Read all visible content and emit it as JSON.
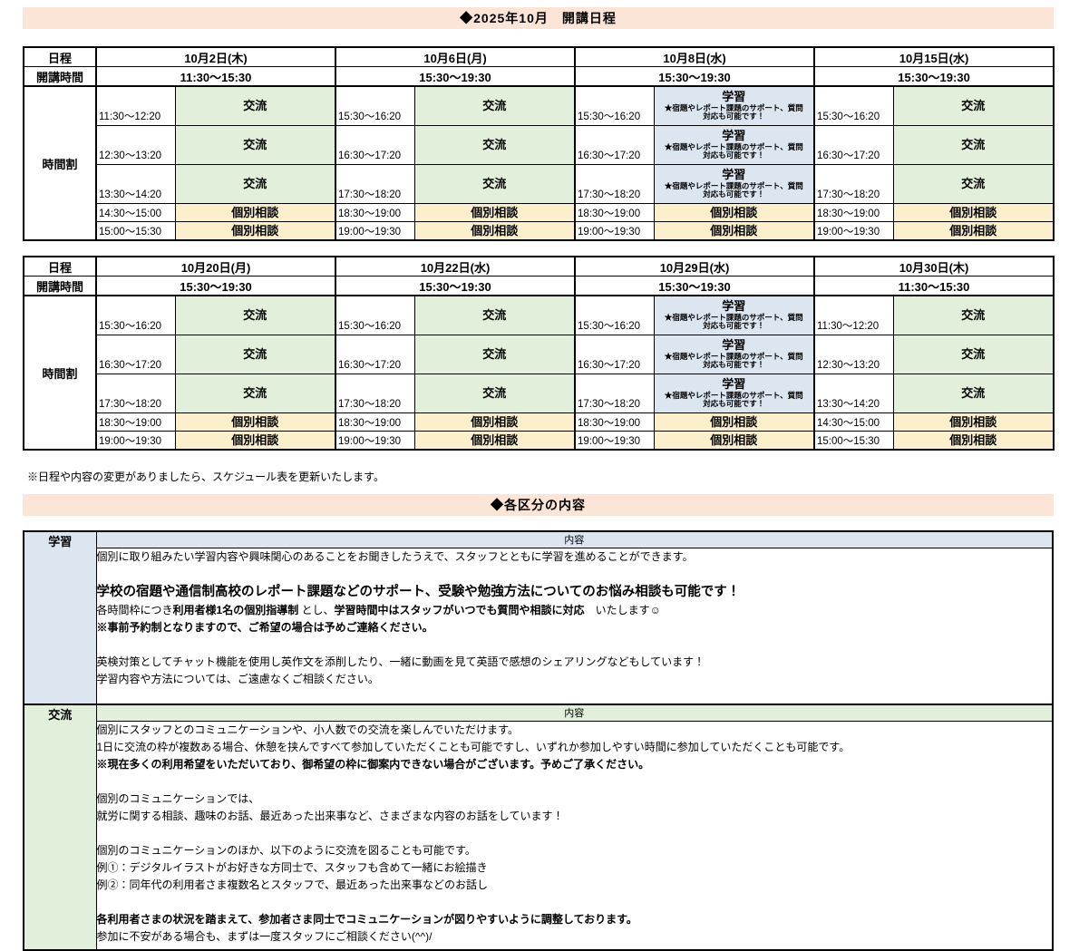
{
  "banners": {
    "schedule": "◆2025年10月　開講日程",
    "categories": "◆各区分の内容"
  },
  "note": "※日程や内容の変更がありましたら、スケジュール表を更新いたします。",
  "labels": {
    "date": "日程",
    "hours": "開講時間",
    "timetable": "時間割",
    "content_header": "内容"
  },
  "colors": {
    "banner_bg": "#FCE4D6",
    "exchange_bg": "#E2EFDA",
    "study_bg": "#DCE6F1",
    "consult_bg": "#FCF0CC",
    "border": "#000000"
  },
  "activity_types": {
    "exchange": {
      "label": "交流",
      "bg": "#E2EFDA",
      "sub_lines": []
    },
    "study": {
      "label": "学習",
      "bg": "#DCE6F1",
      "sub_lines": [
        "★宿題やレポート課題のサポート、質問",
        "対応も可能です！"
      ]
    },
    "consult": {
      "label": "個別相談",
      "bg": "#FCF0CC",
      "sub_lines": []
    }
  },
  "schedule_tables": [
    {
      "days": [
        {
          "date": "10月2日(木)",
          "hours": "11:30～15:30",
          "slots": [
            {
              "time": "11:30～12:20",
              "type": "exchange"
            },
            {
              "time": "12:30～13:20",
              "type": "exchange"
            },
            {
              "time": "13:30～14:20",
              "type": "exchange"
            },
            {
              "time": "14:30～15:00",
              "type": "consult"
            },
            {
              "time": "15:00～15:30",
              "type": "consult"
            }
          ]
        },
        {
          "date": "10月6日(月)",
          "hours": "15:30～19:30",
          "slots": [
            {
              "time": "15:30～16:20",
              "type": "exchange"
            },
            {
              "time": "16:30～17:20",
              "type": "exchange"
            },
            {
              "time": "17:30～18:20",
              "type": "exchange"
            },
            {
              "time": "18:30～19:00",
              "type": "consult"
            },
            {
              "time": "19:00～19:30",
              "type": "consult"
            }
          ]
        },
        {
          "date": "10月8日(水)",
          "hours": "15:30～19:30",
          "slots": [
            {
              "time": "15:30～16:20",
              "type": "study"
            },
            {
              "time": "16:30～17:20",
              "type": "study"
            },
            {
              "time": "17:30～18:20",
              "type": "study"
            },
            {
              "time": "18:30～19:00",
              "type": "consult"
            },
            {
              "time": "19:00～19:30",
              "type": "consult"
            }
          ]
        },
        {
          "date": "10月15日(水)",
          "hours": "15:30～19:30",
          "slots": [
            {
              "time": "15:30～16:20",
              "type": "exchange"
            },
            {
              "time": "16:30～17:20",
              "type": "exchange"
            },
            {
              "time": "17:30～18:20",
              "type": "exchange"
            },
            {
              "time": "18:30～19:00",
              "type": "consult"
            },
            {
              "time": "19:00～19:30",
              "type": "consult"
            }
          ]
        }
      ]
    },
    {
      "days": [
        {
          "date": "10月20日(月)",
          "hours": "15:30～19:30",
          "slots": [
            {
              "time": "15:30～16:20",
              "type": "exchange"
            },
            {
              "time": "16:30～17:20",
              "type": "exchange"
            },
            {
              "time": "17:30～18:20",
              "type": "exchange"
            },
            {
              "time": "18:30～19:00",
              "type": "consult"
            },
            {
              "time": "19:00～19:30",
              "type": "consult"
            }
          ]
        },
        {
          "date": "10月22日(水)",
          "hours": "15:30～19:30",
          "slots": [
            {
              "time": "15:30～16:20",
              "type": "exchange"
            },
            {
              "time": "16:30～17:20",
              "type": "exchange"
            },
            {
              "time": "17:30～18:20",
              "type": "exchange"
            },
            {
              "time": "18:30～19:00",
              "type": "consult"
            },
            {
              "time": "19:00～19:30",
              "type": "consult"
            }
          ]
        },
        {
          "date": "10月29日(水)",
          "hours": "15:30～19:30",
          "slots": [
            {
              "time": "15:30～16:20",
              "type": "study"
            },
            {
              "time": "16:30～17:20",
              "type": "study"
            },
            {
              "time": "17:30～18:20",
              "type": "study"
            },
            {
              "time": "18:30～19:00",
              "type": "consult"
            },
            {
              "time": "19:00～19:30",
              "type": "consult"
            }
          ]
        },
        {
          "date": "10月30日(木)",
          "hours": "11:30～15:30",
          "slots": [
            {
              "time": "11:30～12:20",
              "type": "exchange"
            },
            {
              "time": "12:30～13:20",
              "type": "exchange"
            },
            {
              "time": "13:30～14:20",
              "type": "exchange"
            },
            {
              "time": "14:30～15:00",
              "type": "consult"
            },
            {
              "time": "15:00～15:30",
              "type": "consult"
            }
          ]
        }
      ]
    }
  ],
  "sections": [
    {
      "key": "study",
      "label": "学習",
      "bg": "#DCE6F1",
      "body_height": 171,
      "lines": [
        {
          "segs": [
            {
              "text": "個別に取り組みたい学習内容や興味関心のあることをお聞きしたうえで、スタッフとともに学習を進めることができます。",
              "bold": false
            }
          ]
        },
        {
          "segs": []
        },
        {
          "size": "large",
          "segs": [
            {
              "text": "学校の宿題や通信制高校のレポート課題などのサポート、受験や勉強方法についてのお悩み相談も可能です！",
              "bold": true
            }
          ]
        },
        {
          "segs": [
            {
              "text": "各時間枠につき",
              "bold": false
            },
            {
              "text": "利用者様1名の個別指導制",
              "bold": true
            },
            {
              "text": " とし、",
              "bold": false
            },
            {
              "text": "学習時間中はスタッフがいつでも質問や相談に対応",
              "bold": true
            },
            {
              "text": "　いたします☺",
              "bold": false
            }
          ]
        },
        {
          "segs": [
            {
              "text": "※事前予約制となりますので、ご希望の場合は予めご連絡ください。",
              "bold": true
            }
          ]
        },
        {
          "segs": []
        },
        {
          "segs": [
            {
              "text": "英検対策としてチャット機能を使用し英作文を添削したり、一緒に動画を見て英語で感想のシェアリングなどもしています！",
              "bold": false
            }
          ]
        },
        {
          "segs": [
            {
              "text": "学習内容や方法については、ご遠慮なくご相談ください。",
              "bold": false
            }
          ]
        }
      ]
    },
    {
      "key": "exchange",
      "label": "交流",
      "bg": "#E2EFDA",
      "body_height": 251,
      "lines": [
        {
          "segs": [
            {
              "text": "個別にスタッフとのコミュニケーションや、小人数での交流を楽しんでいただけます。",
              "bold": false
            }
          ]
        },
        {
          "segs": [
            {
              "text": "1日に交流の枠が複数ある場合、休憩を挟んですべて参加していただくことも可能ですし、いずれか参加しやすい時間に参加していただくことも可能です。",
              "bold": false
            }
          ]
        },
        {
          "segs": [
            {
              "text": "※現在多くの利用希望をいただいており、御希望の枠に御案内できない場合がございます。予めご了承ください。",
              "bold": true
            }
          ]
        },
        {
          "segs": []
        },
        {
          "segs": [
            {
              "text": "個別のコミュニケーションでは、",
              "bold": false
            }
          ]
        },
        {
          "segs": [
            {
              "text": "就労に関する相談、趣味のお話、最近あった出来事など、さまざまな内容のお話をしています！",
              "bold": false
            }
          ]
        },
        {
          "segs": []
        },
        {
          "segs": [
            {
              "text": "個別のコミュニケーションのほか、以下のように交流を図ることも可能です。",
              "bold": false
            }
          ]
        },
        {
          "segs": [
            {
              "text": "例①：デジタルイラストがお好きな方同士で、スタッフも含めて一緒にお絵描き",
              "bold": false
            }
          ]
        },
        {
          "segs": [
            {
              "text": "例②：同年代の利用者さま複数名とスタッフで、最近あった出来事などのお話し",
              "bold": false
            }
          ]
        },
        {
          "segs": []
        },
        {
          "segs": [
            {
              "text": "各利用者さまの状況を踏まえて、参加者さま同士でコミュニケーションが図りやすいように調整しております。",
              "bold": true
            }
          ]
        },
        {
          "segs": [
            {
              "text": "参加に不安がある場合も、まずは一度スタッフにご相談ください(^^)/",
              "bold": false
            }
          ]
        }
      ]
    }
  ]
}
